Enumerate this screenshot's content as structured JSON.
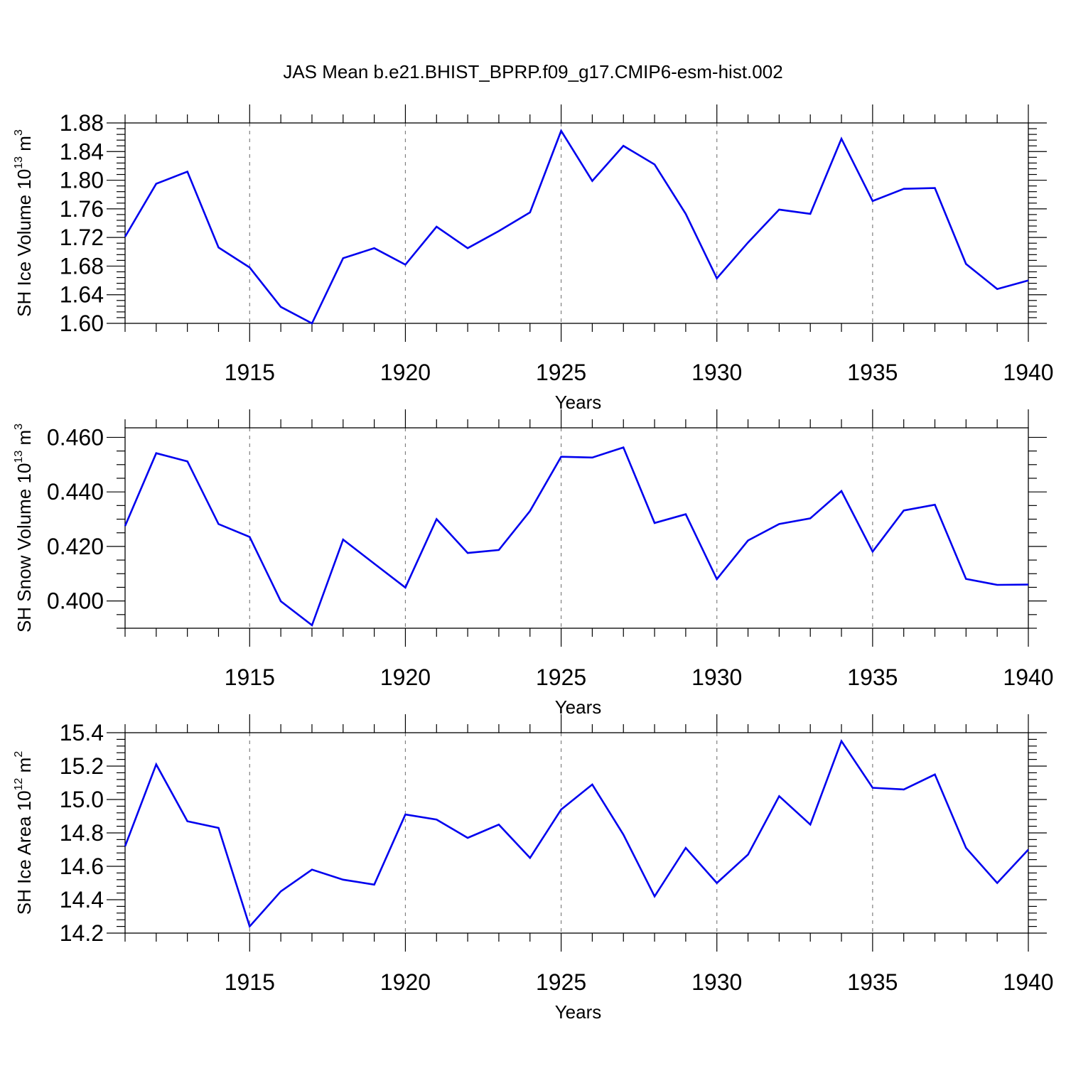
{
  "title": "JAS Mean b.e21.BHIST_BPRP.f09_g17.CMIP6-esm-hist.002",
  "line_color": "#0000ee",
  "chart_data": [
    {
      "type": "line",
      "xlabel": "Years",
      "ylabel": {
        "text": "SH Ice Volume 10",
        "exp": "13",
        "unit": " m",
        "unit_exp": "3"
      },
      "xlim": [
        1911,
        1940
      ],
      "ylim": [
        1.6,
        1.88
      ],
      "xticks": [
        "1915",
        "1920",
        "1925",
        "1930",
        "1935",
        "1940"
      ],
      "yticks": [
        "1.60",
        "1.64",
        "1.68",
        "1.72",
        "1.76",
        "1.80",
        "1.84",
        "1.88"
      ],
      "x": [
        1911,
        1912,
        1913,
        1914,
        1915,
        1916,
        1917,
        1918,
        1919,
        1920,
        1921,
        1922,
        1923,
        1924,
        1925,
        1926,
        1927,
        1928,
        1929,
        1930,
        1931,
        1932,
        1933,
        1934,
        1935,
        1936,
        1937,
        1938,
        1939,
        1940
      ],
      "values": [
        1.721,
        1.795,
        1.812,
        1.706,
        1.678,
        1.623,
        1.6,
        1.691,
        1.705,
        1.682,
        1.735,
        1.705,
        1.729,
        1.755,
        1.869,
        1.799,
        1.848,
        1.822,
        1.753,
        1.663,
        1.713,
        1.759,
        1.753,
        1.858,
        1.771,
        1.788,
        1.789,
        1.683,
        1.648,
        1.66
      ]
    },
    {
      "type": "line",
      "xlabel": "Years",
      "ylabel": {
        "text": "SH Snow Volume 10",
        "exp": "13",
        "unit": " m",
        "unit_exp": "3"
      },
      "xlim": [
        1911,
        1940
      ],
      "ylim": [
        0.39,
        0.4635
      ],
      "xticks": [
        "1915",
        "1920",
        "1925",
        "1930",
        "1935",
        "1940"
      ],
      "yticks": [
        "0.400",
        "0.420",
        "0.440",
        "0.460"
      ],
      "x": [
        1911,
        1912,
        1913,
        1914,
        1915,
        1916,
        1917,
        1918,
        1919,
        1920,
        1921,
        1922,
        1923,
        1924,
        1925,
        1926,
        1927,
        1928,
        1929,
        1930,
        1931,
        1932,
        1933,
        1934,
        1935,
        1936,
        1937,
        1938,
        1939,
        1940
      ],
      "values": [
        0.4275,
        0.4542,
        0.4512,
        0.4282,
        0.4235,
        0.3999,
        0.3911,
        0.4225,
        0.4137,
        0.4049,
        0.43,
        0.4176,
        0.4187,
        0.433,
        0.4529,
        0.4526,
        0.4563,
        0.4286,
        0.4318,
        0.408,
        0.4222,
        0.4282,
        0.4303,
        0.4403,
        0.4181,
        0.4332,
        0.4353,
        0.4081,
        0.4059,
        0.406
      ]
    },
    {
      "type": "line",
      "xlabel": "Years",
      "ylabel": {
        "text": "SH Ice Area 10",
        "exp": "12",
        "unit": " m",
        "unit_exp": "2"
      },
      "xlim": [
        1911,
        1940
      ],
      "ylim": [
        14.2,
        15.4
      ],
      "xticks": [
        "1915",
        "1920",
        "1925",
        "1930",
        "1935",
        "1940"
      ],
      "yticks": [
        "14.2",
        "14.4",
        "14.6",
        "14.8",
        "15.0",
        "15.2",
        "15.4"
      ],
      "x": [
        1911,
        1912,
        1913,
        1914,
        1915,
        1916,
        1917,
        1918,
        1919,
        1920,
        1921,
        1922,
        1923,
        1924,
        1925,
        1926,
        1927,
        1928,
        1929,
        1930,
        1931,
        1932,
        1933,
        1934,
        1935,
        1936,
        1937,
        1938,
        1939,
        1940
      ],
      "values": [
        14.72,
        15.21,
        14.87,
        14.83,
        14.24,
        14.45,
        14.58,
        14.52,
        14.49,
        14.91,
        14.88,
        14.77,
        14.85,
        14.65,
        14.94,
        15.09,
        14.79,
        14.42,
        14.71,
        14.5,
        14.67,
        15.02,
        14.85,
        15.35,
        15.07,
        15.06,
        15.15,
        14.71,
        14.5,
        14.7
      ]
    }
  ]
}
